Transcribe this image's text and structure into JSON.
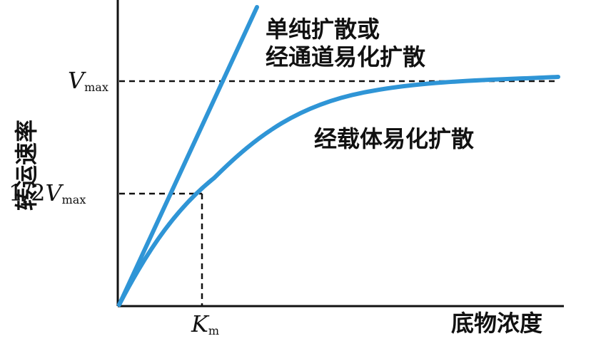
{
  "diagram": {
    "y_axis_label": "转运速率",
    "x_axis_label": "底物浓度",
    "line_label_1": "单纯扩散或",
    "line_label_2": "经通道易化扩散",
    "curve_label": "经载体易化扩散",
    "vmax_symbol": "V",
    "vmax_sub": "max",
    "half_vmax_prefix": "1/2",
    "half_vmax_symbol": "V",
    "half_vmax_sub": "max",
    "km_symbol": "K",
    "km_sub": "m"
  },
  "colors": {
    "curve": "#2f95d6",
    "axis": "#111111"
  }
}
